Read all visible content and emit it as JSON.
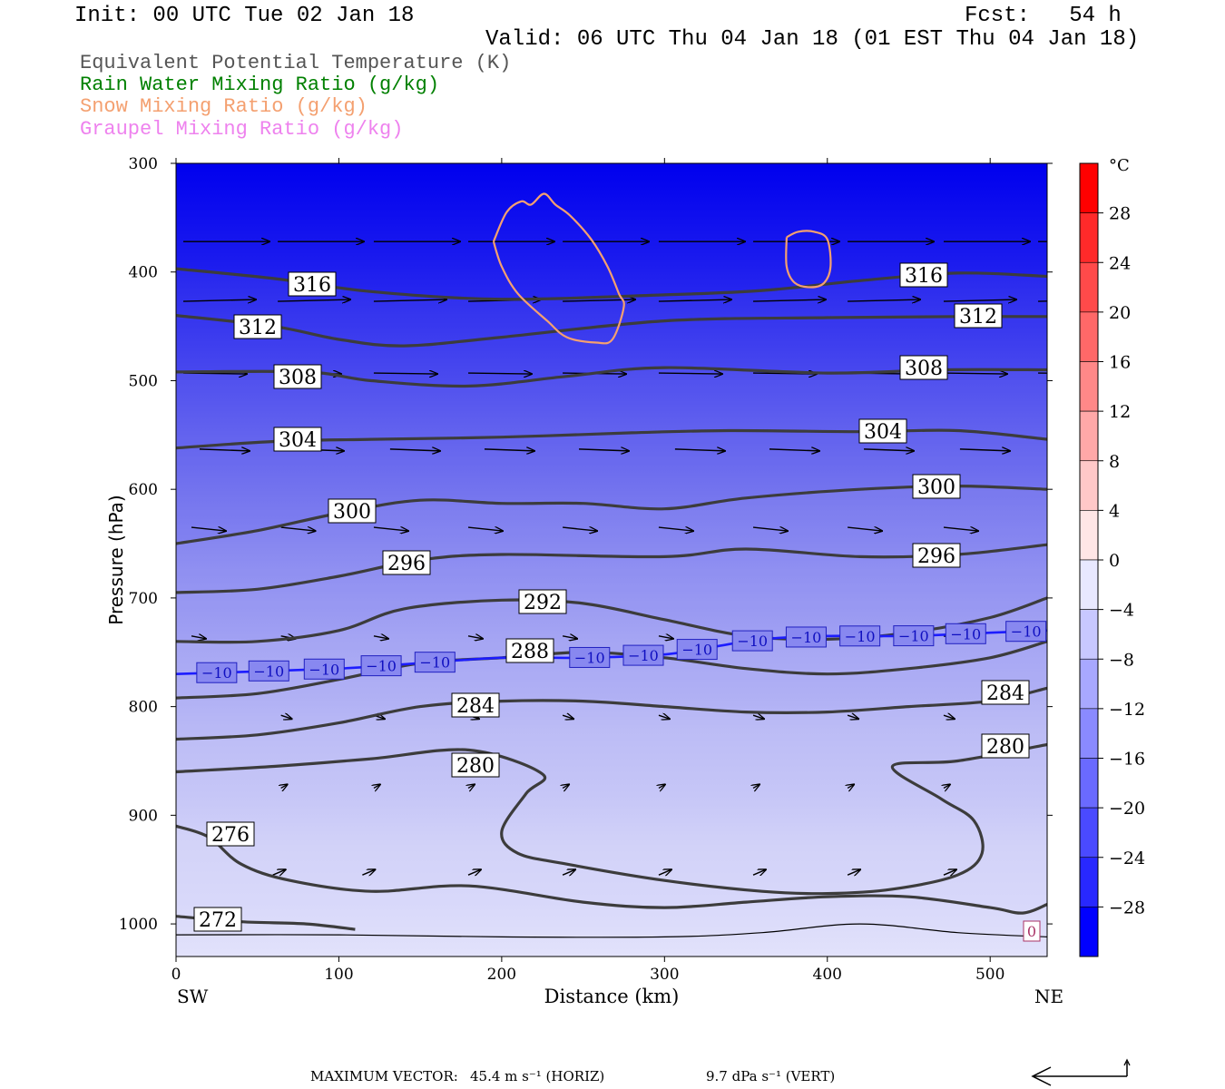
{
  "header": {
    "init": "Init: 00 UTC Tue 02 Jan 18",
    "fcst": "Fcst:   54 h",
    "valid": "Valid: 06 UTC Thu 04 Jan 18 (01 EST Thu 04 Jan 18)"
  },
  "legend": {
    "items": [
      {
        "label": "Equivalent Potential Temperature (K)",
        "color": "#555555"
      },
      {
        "label": "Rain Water Mixing Ratio (g/kg)",
        "color": "#008000"
      },
      {
        "label": "Snow Mixing Ratio (g/kg)",
        "color": "#f4a070"
      },
      {
        "label": "Graupel Mixing Ratio (g/kg)",
        "color": "#ee82ee"
      }
    ]
  },
  "footer": {
    "max_vector_label": "MAXIMUM VECTOR:",
    "horiz_value": "45.4 m s⁻¹ (HORIZ)",
    "vert_value": "9.7 dPa s⁻¹ (VERT)"
  },
  "chart_data": {
    "type": "contour",
    "xlabel": "Distance (km)",
    "ylabel": "Pressure (hPa)",
    "xlim": [
      0,
      535
    ],
    "ylim": [
      300,
      1030
    ],
    "y_inverted": true,
    "x_ticks": [
      0,
      100,
      200,
      300,
      400,
      500
    ],
    "y_ticks": [
      300,
      400,
      500,
      600,
      700,
      800,
      900,
      1000
    ],
    "x_end_labels": {
      "left": "SW",
      "right": "NE"
    },
    "colorbar": {
      "unit": "°C",
      "ticks": [
        28,
        24,
        20,
        16,
        12,
        8,
        4,
        0,
        -4,
        -8,
        -12,
        -16,
        -20,
        -24,
        -28
      ]
    },
    "theta_e_contours": [
      {
        "level": 316,
        "x": [
          0,
          60,
          120,
          200,
          300,
          360,
          420,
          480,
          535
        ],
        "p": [
          397,
          406,
          418,
          425,
          421,
          417,
          408,
          401,
          404
        ]
      },
      {
        "level": 312,
        "x": [
          0,
          60,
          100,
          140,
          200,
          300,
          400,
          480,
          535
        ],
        "p": [
          440,
          450,
          462,
          468,
          460,
          445,
          442,
          441,
          441
        ]
      },
      {
        "level": 308,
        "x": [
          0,
          80,
          120,
          180,
          240,
          300,
          400,
          470,
          535
        ],
        "p": [
          492,
          492,
          500,
          505,
          496,
          488,
          493,
          490,
          490
        ]
      },
      {
        "level": 304,
        "x": [
          0,
          60,
          120,
          200,
          280,
          340,
          420,
          480,
          535
        ],
        "p": [
          562,
          556,
          554,
          552,
          548,
          546,
          547,
          546,
          554
        ]
      },
      {
        "level": 300,
        "x": [
          0,
          50,
          100,
          150,
          200,
          250,
          300,
          350,
          420,
          480,
          535
        ],
        "p": [
          650,
          638,
          622,
          610,
          613,
          613,
          618,
          608,
          600,
          597,
          600
        ]
      },
      {
        "level": 296,
        "x": [
          0,
          50,
          100,
          150,
          200,
          300,
          350,
          420,
          480,
          535
        ],
        "p": [
          695,
          692,
          680,
          665,
          660,
          662,
          655,
          662,
          660,
          651
        ]
      },
      {
        "level": 292,
        "x": [
          0,
          50,
          100,
          140,
          200,
          250,
          300,
          350,
          400,
          450,
          500,
          535
        ],
        "p": [
          740,
          740,
          730,
          710,
          702,
          705,
          720,
          735,
          738,
          732,
          718,
          700
        ]
      },
      {
        "level": 288,
        "x": [
          0,
          50,
          100,
          150,
          200,
          250,
          300,
          350,
          400,
          450,
          500,
          535
        ],
        "p": [
          792,
          788,
          775,
          760,
          755,
          750,
          755,
          765,
          770,
          765,
          755,
          740
        ]
      },
      {
        "level": 284,
        "x": [
          0,
          50,
          100,
          150,
          200,
          250,
          300,
          350,
          400,
          450,
          500,
          535
        ],
        "p": [
          830,
          826,
          815,
          800,
          795,
          795,
          800,
          805,
          805,
          800,
          795,
          783
        ]
      },
      {
        "level": 280,
        "x": [
          0,
          60,
          120,
          180,
          225,
          215,
          200,
          210,
          240,
          300,
          360,
          400,
          440,
          480,
          495,
          490,
          470,
          440,
          480,
          535
        ],
        "p": [
          860,
          855,
          848,
          840,
          862,
          880,
          915,
          935,
          945,
          960,
          970,
          972,
          968,
          955,
          935,
          905,
          885,
          855,
          850,
          835
        ]
      },
      {
        "level": 276,
        "x": [
          0,
          20,
          40,
          70,
          120,
          180,
          250,
          300,
          350,
          400,
          450,
          500,
          520,
          535
        ],
        "p": [
          910,
          920,
          945,
          960,
          970,
          965,
          980,
          985,
          980,
          975,
          975,
          985,
          990,
          982
        ]
      },
      {
        "level": 272,
        "x": [
          0,
          40,
          80,
          110
        ],
        "p": [
          993,
          998,
          1000,
          1005
        ]
      }
    ],
    "isotherm_minus10": {
      "level": -10,
      "x": [
        0,
        100,
        150,
        200,
        250,
        300,
        330,
        360,
        400,
        450,
        500,
        535
      ],
      "p": [
        770,
        765,
        760,
        755,
        755,
        752,
        745,
        738,
        735,
        735,
        732,
        730
      ]
    },
    "zero_isotherm_label": "0",
    "snow_contours": [
      {
        "x": [
          195,
          203,
          212,
          218,
          226,
          233,
          242,
          255,
          265,
          272,
          275,
          268,
          258,
          240,
          228,
          210,
          200,
          195
        ],
        "p": [
          372,
          345,
          335,
          338,
          328,
          338,
          348,
          370,
          395,
          420,
          432,
          462,
          465,
          460,
          445,
          420,
          395,
          372
        ]
      },
      {
        "x": [
          375,
          382,
          392,
          400,
          402,
          398,
          390,
          380,
          375,
          375
        ],
        "p": [
          368,
          363,
          363,
          370,
          395,
          410,
          414,
          410,
          395,
          368
        ]
      }
    ]
  }
}
